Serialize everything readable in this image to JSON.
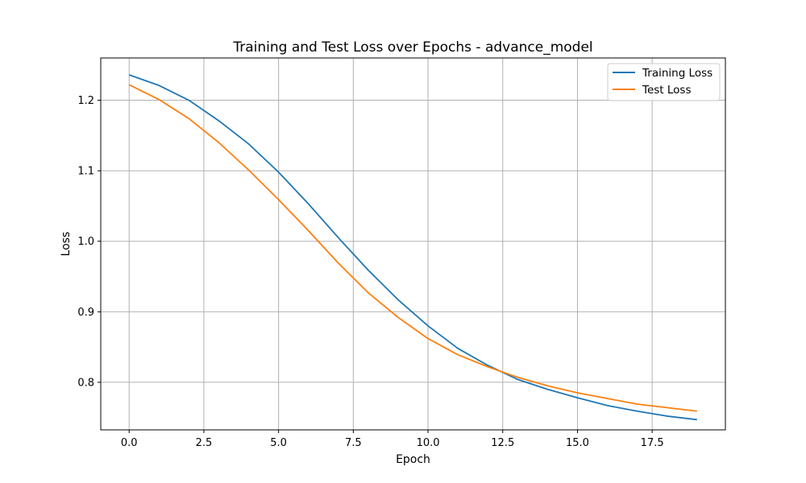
{
  "chart_data": {
    "type": "line",
    "title": "Training and Test Loss over Epochs - advance_model",
    "xlabel": "Epoch",
    "ylabel": "Loss",
    "xlim": [
      -0.95,
      19.95
    ],
    "ylim": [
      0.7325,
      1.26
    ],
    "xticks": [
      0,
      2.5,
      5,
      7.5,
      10,
      12.5,
      15,
      17.5
    ],
    "xtick_labels": [
      "0.0",
      "2.5",
      "5.0",
      "7.5",
      "10.0",
      "12.5",
      "15.0",
      "17.5"
    ],
    "yticks": [
      0.8,
      0.9,
      1.0,
      1.1,
      1.2
    ],
    "ytick_labels": [
      "0.8",
      "0.9",
      "1.0",
      "1.1",
      "1.2"
    ],
    "grid": true,
    "legend_position": "top-right",
    "x": [
      0,
      1,
      2,
      3,
      4,
      5,
      6,
      7,
      8,
      9,
      10,
      11,
      12,
      13,
      14,
      15,
      16,
      17,
      18,
      19
    ],
    "series": [
      {
        "name": "Training Loss",
        "color": "#1f77b4",
        "values": [
          1.236,
          1.221,
          1.2,
          1.171,
          1.138,
          1.098,
          1.053,
          1.005,
          0.959,
          0.917,
          0.88,
          0.848,
          0.824,
          0.804,
          0.79,
          0.778,
          0.767,
          0.759,
          0.752,
          0.747
        ]
      },
      {
        "name": "Test Loss",
        "color": "#ff7f0e",
        "values": [
          1.222,
          1.201,
          1.174,
          1.14,
          1.101,
          1.059,
          1.015,
          0.969,
          0.927,
          0.892,
          0.862,
          0.839,
          0.822,
          0.807,
          0.795,
          0.785,
          0.777,
          0.769,
          0.764,
          0.759
        ]
      }
    ]
  }
}
